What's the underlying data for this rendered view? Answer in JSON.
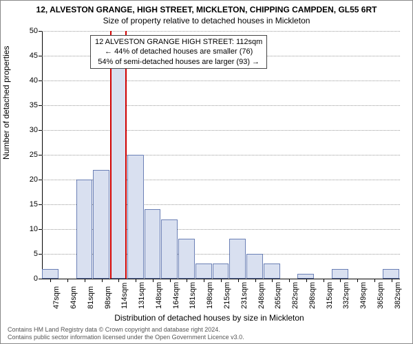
{
  "title_main": "12, ALVESTON GRANGE, HIGH STREET, MICKLETON, CHIPPING CAMPDEN, GL55 6RT",
  "title_sub": "Size of property relative to detached houses in Mickleton",
  "chart": {
    "type": "histogram",
    "ylabel": "Number of detached properties",
    "xlabel": "Distribution of detached houses by size in Mickleton",
    "ylim": [
      0,
      50
    ],
    "ytick_step": 5,
    "yticks": [
      0,
      5,
      10,
      15,
      20,
      25,
      30,
      35,
      40,
      45,
      50
    ],
    "xticks": [
      "47sqm",
      "64sqm",
      "81sqm",
      "98sqm",
      "114sqm",
      "131sqm",
      "148sqm",
      "164sqm",
      "181sqm",
      "198sqm",
      "215sqm",
      "231sqm",
      "248sqm",
      "265sqm",
      "282sqm",
      "298sqm",
      "315sqm",
      "332sqm",
      "349sqm",
      "365sqm",
      "382sqm"
    ],
    "bar_values": [
      2,
      0,
      20,
      22,
      45,
      25,
      14,
      12,
      8,
      3,
      3,
      8,
      5,
      3,
      0,
      1,
      0,
      2,
      0,
      0,
      2
    ],
    "bar_fill": "#d9e0f0",
    "bar_border": "#6a7fb5",
    "highlight_index": 4,
    "highlight_color": "#d00000",
    "grid_color": "#999999",
    "background_color": "#ffffff",
    "label_fontsize": 12,
    "tick_fontsize": 11
  },
  "annotation": {
    "line1": "12 ALVESTON GRANGE HIGH STREET: 112sqm",
    "line2": "← 44% of detached houses are smaller (76)",
    "line3": "54% of semi-detached houses are larger (93) →"
  },
  "footer": {
    "line1": "Contains HM Land Registry data © Crown copyright and database right 2024.",
    "line2": "Contains public sector information licensed under the Open Government Licence v3.0."
  }
}
